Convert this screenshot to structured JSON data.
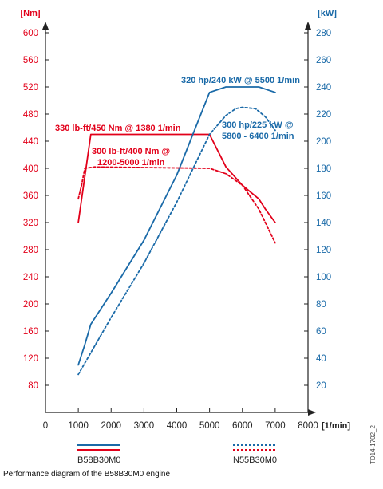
{
  "chart_data": {
    "type": "line",
    "xlabel": "[1/min]",
    "y_left_label": "[Nm]",
    "y_right_label": "[kW]",
    "x_ticks": [
      0,
      1000,
      2000,
      3000,
      4000,
      5000,
      6000,
      7000,
      8000
    ],
    "y_left_ticks": [
      80,
      120,
      160,
      200,
      240,
      280,
      320,
      360,
      400,
      440,
      480,
      520,
      560,
      600
    ],
    "y_right_ticks": [
      20,
      40,
      60,
      80,
      100,
      120,
      140,
      160,
      180,
      200,
      220,
      240,
      260,
      280
    ],
    "xlim": [
      0,
      8000
    ],
    "ylim_left": [
      40,
      600
    ],
    "ylim_right": [
      0,
      280
    ],
    "series": [
      {
        "name": "B58B30M0",
        "quantity": "torque",
        "axis": "left",
        "color": "#e2001a",
        "style": "solid",
        "x": [
          1000,
          1380,
          5000,
          5500,
          6000,
          6500,
          6700,
          7000
        ],
        "y": [
          320,
          450,
          450,
          402,
          375,
          355,
          340,
          320
        ]
      },
      {
        "name": "B58B30M0",
        "quantity": "power",
        "axis": "right",
        "color": "#1a6aa8",
        "style": "solid",
        "x": [
          1000,
          1200,
          1380,
          2000,
          3000,
          4000,
          5000,
          5500,
          6000,
          6500,
          7000
        ],
        "y": [
          35,
          50,
          65,
          88,
          127,
          175,
          236,
          240,
          240,
          240,
          236
        ]
      },
      {
        "name": "N55B30M0",
        "quantity": "torque",
        "axis": "left",
        "color": "#e2001a",
        "style": "dotted",
        "x": [
          1000,
          1100,
          1200,
          1500,
          5000,
          5500,
          6000,
          6500,
          7000
        ],
        "y": [
          355,
          375,
          400,
          402,
          400,
          392,
          375,
          340,
          290
        ]
      },
      {
        "name": "N55B30M0",
        "quantity": "power",
        "axis": "right",
        "color": "#1a6aa8",
        "style": "dotted",
        "x": [
          1000,
          2000,
          3000,
          4000,
          5000,
          5500,
          5800,
          6000,
          6400,
          6700,
          7000
        ],
        "y": [
          28,
          70,
          110,
          155,
          205,
          219,
          224,
          225,
          224,
          218,
          208
        ]
      }
    ],
    "annotations": [
      {
        "text": "320 hp/240 kW @ 5500 1/min",
        "color": "blue"
      },
      {
        "text": "330 lb-ft/450 Nm @ 1380 1/min",
        "color": "red"
      },
      {
        "text": "300 hp/225 kW @",
        "color": "blue"
      },
      {
        "text": "5800 - 6400 1/min",
        "color": "blue"
      },
      {
        "text": "300 lb-ft/400 Nm @",
        "color": "red"
      },
      {
        "text": "1200-5000 1/min",
        "color": "red"
      }
    ],
    "legend": [
      {
        "label": "B58B30M0",
        "style": "solid"
      },
      {
        "label": "N55B30M0",
        "style": "dotted"
      }
    ]
  },
  "figure_code": "TD14-1702_2",
  "caption": "Performance diagram of the B58B30M0 engine"
}
